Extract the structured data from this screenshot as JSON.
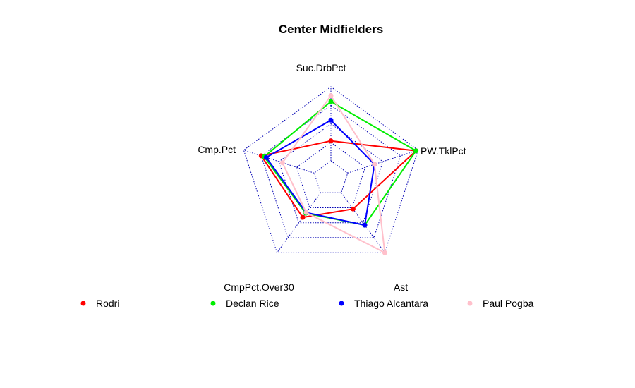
{
  "chart_data": {
    "type": "radar",
    "title": "Center Midfielders",
    "axes": [
      "Suc.DrbPct",
      "PW.TklPct",
      "Ast",
      "CmpPct.Over30",
      "Cmp.Pct"
    ],
    "range": [
      0,
      1
    ],
    "grid": {
      "levels": 4,
      "style": "dotted",
      "color": "#0000b4"
    },
    "legend_position": "bottom",
    "series": [
      {
        "name": "Rodri",
        "color": "#ff0000",
        "values": [
          0.27,
          0.97,
          0.27,
          0.41,
          0.75
        ]
      },
      {
        "name": "Declan Rice",
        "color": "#00ee00",
        "values": [
          0.8,
          0.97,
          0.54,
          0.34,
          0.71
        ]
      },
      {
        "name": "Thiago Alcantara",
        "color": "#0000ff",
        "values": [
          0.55,
          0.38,
          0.54,
          0.33,
          0.68
        ]
      },
      {
        "name": "Paul Pogba",
        "color": "#ffc0cb",
        "values": [
          0.88,
          0.38,
          1.0,
          0.33,
          0.45
        ]
      }
    ]
  }
}
